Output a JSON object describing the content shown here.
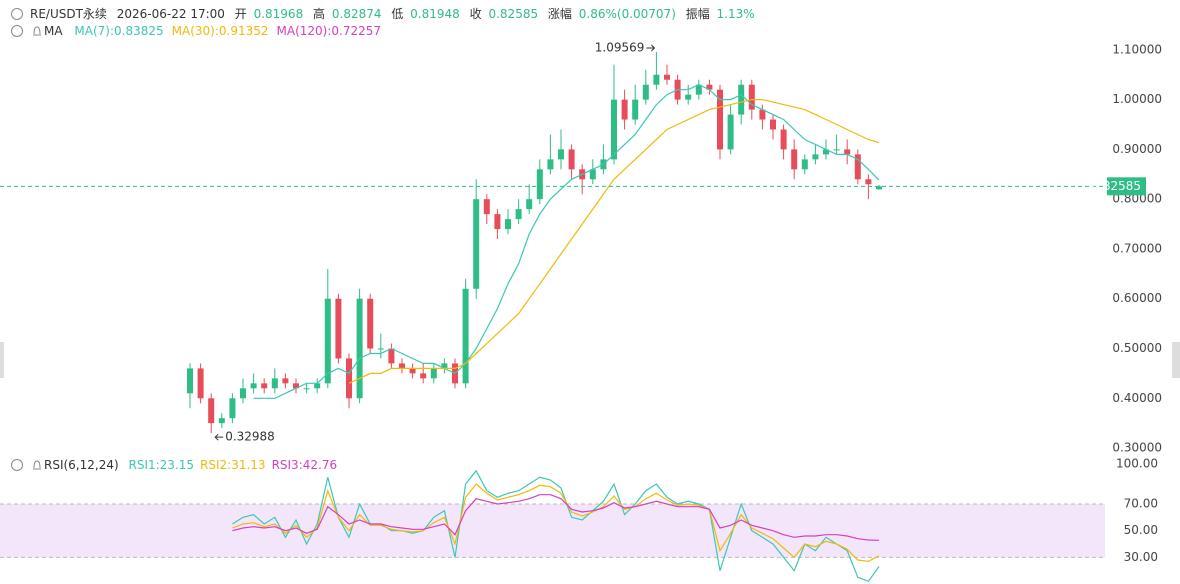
{
  "header": {
    "symbol": "RE/USDT永续",
    "time": "2026-06-22 17:00",
    "labels": [
      "开",
      "高",
      "低",
      "收",
      "涨幅",
      "振幅"
    ],
    "change": "0.86%(0.00707)",
    "amplitude": "1.13%"
  },
  "chart_data": [
    {
      "type": "candlestick",
      "legend_title": "MA",
      "up_color": "#2ebd85",
      "down_color": "#e84c5a",
      "ylim": [
        0.28,
        1.16
      ],
      "yticks": [
        {
          "value": 1.1,
          "label": "1.10000"
        },
        {
          "value": 1.0,
          "label": "1.00000"
        },
        {
          "value": 0.9,
          "label": "0.90000"
        },
        {
          "value": 0.8,
          "label": "0.80000"
        },
        {
          "value": 0.7,
          "label": "0.70000"
        },
        {
          "value": 0.6,
          "label": "0.60000"
        },
        {
          "value": 0.5,
          "label": "0.50000"
        },
        {
          "value": 0.4,
          "label": "0.40000"
        },
        {
          "value": 0.3,
          "label": "0.30000"
        }
      ],
      "open": [
        0.41,
        0.46,
        0.4,
        0.35,
        0.36,
        0.4,
        0.42,
        0.43,
        0.42,
        0.44,
        0.43,
        0.42,
        0.42,
        0.43,
        0.6,
        0.48,
        0.4,
        0.6,
        0.5,
        0.5,
        0.47,
        0.46,
        0.45,
        0.44,
        0.46,
        0.47,
        0.43,
        0.62,
        0.8,
        0.77,
        0.74,
        0.76,
        0.78,
        0.8,
        0.86,
        0.88,
        0.9,
        0.86,
        0.84,
        0.86,
        0.88,
        1.0,
        0.96,
        1.0,
        1.03,
        1.05,
        1.04,
        1.0,
        1.01,
        1.03,
        1.02,
        0.9,
        0.97,
        1.03,
        0.98,
        0.96,
        0.94,
        0.9,
        0.86,
        0.88,
        0.89,
        0.9,
        0.9,
        0.89,
        0.84,
        0.81968
      ],
      "high": [
        0.47,
        0.47,
        0.41,
        0.37,
        0.41,
        0.44,
        0.45,
        0.44,
        0.46,
        0.45,
        0.44,
        0.43,
        0.44,
        0.66,
        0.61,
        0.49,
        0.62,
        0.61,
        0.53,
        0.51,
        0.48,
        0.47,
        0.47,
        0.47,
        0.48,
        0.48,
        0.64,
        0.84,
        0.81,
        0.78,
        0.78,
        0.8,
        0.83,
        0.88,
        0.93,
        0.94,
        0.91,
        0.87,
        0.88,
        0.91,
        1.07,
        1.02,
        1.03,
        1.06,
        1.09569,
        1.07,
        1.05,
        1.03,
        1.04,
        1.04,
        1.03,
        0.99,
        1.04,
        1.04,
        0.99,
        0.97,
        0.95,
        0.92,
        0.89,
        0.91,
        0.92,
        0.93,
        0.92,
        0.9,
        0.85,
        0.82874
      ],
      "low": [
        0.38,
        0.39,
        0.32988,
        0.34,
        0.35,
        0.39,
        0.41,
        0.41,
        0.41,
        0.42,
        0.41,
        0.41,
        0.41,
        0.42,
        0.47,
        0.38,
        0.39,
        0.49,
        0.48,
        0.46,
        0.45,
        0.44,
        0.43,
        0.43,
        0.45,
        0.42,
        0.42,
        0.6,
        0.75,
        0.72,
        0.73,
        0.75,
        0.77,
        0.79,
        0.85,
        0.86,
        0.84,
        0.81,
        0.83,
        0.85,
        0.87,
        0.94,
        0.95,
        0.99,
        1.02,
        1.03,
        0.99,
        0.99,
        1.0,
        1.01,
        0.88,
        0.89,
        0.95,
        0.96,
        0.94,
        0.92,
        0.88,
        0.84,
        0.85,
        0.87,
        0.88,
        0.89,
        0.87,
        0.83,
        0.8,
        0.81948
      ],
      "close": [
        0.46,
        0.4,
        0.35,
        0.36,
        0.4,
        0.42,
        0.43,
        0.42,
        0.44,
        0.43,
        0.42,
        0.42,
        0.43,
        0.6,
        0.48,
        0.4,
        0.6,
        0.5,
        0.5,
        0.47,
        0.46,
        0.45,
        0.44,
        0.46,
        0.47,
        0.43,
        0.62,
        0.8,
        0.77,
        0.74,
        0.76,
        0.78,
        0.8,
        0.86,
        0.88,
        0.9,
        0.86,
        0.84,
        0.86,
        0.88,
        1.0,
        0.96,
        1.0,
        1.03,
        1.05,
        1.04,
        1.0,
        1.01,
        1.03,
        1.02,
        0.9,
        0.97,
        1.03,
        0.98,
        0.96,
        0.94,
        0.9,
        0.86,
        0.88,
        0.89,
        0.9,
        0.9,
        0.89,
        0.84,
        0.83,
        0.82585
      ],
      "series": [
        {
          "name": "MA(7):0.83825",
          "color": "#3cc7b5",
          "values": [
            null,
            null,
            null,
            null,
            null,
            null,
            0.4,
            0.4,
            0.4,
            0.41,
            0.42,
            0.43,
            0.43,
            0.45,
            0.46,
            0.45,
            0.48,
            0.49,
            0.49,
            0.5,
            0.49,
            0.48,
            0.47,
            0.47,
            0.46,
            0.45,
            0.47,
            0.5,
            0.54,
            0.58,
            0.63,
            0.67,
            0.73,
            0.77,
            0.8,
            0.82,
            0.84,
            0.85,
            0.86,
            0.87,
            0.89,
            0.91,
            0.93,
            0.96,
            0.99,
            1.01,
            1.02,
            1.02,
            1.03,
            1.02,
            1.0,
            1.0,
            1.01,
            0.99,
            0.98,
            0.97,
            0.96,
            0.94,
            0.92,
            0.91,
            0.9,
            0.89,
            0.89,
            0.88,
            0.86,
            0.83825
          ]
        },
        {
          "name": "MA(30):0.91352",
          "color": "#f0b90b",
          "values": [
            null,
            null,
            null,
            null,
            null,
            null,
            null,
            null,
            null,
            null,
            null,
            null,
            null,
            null,
            null,
            0.43,
            0.44,
            0.45,
            0.45,
            0.46,
            0.46,
            0.46,
            0.46,
            0.46,
            0.46,
            0.46,
            0.47,
            0.49,
            0.51,
            0.53,
            0.55,
            0.57,
            0.6,
            0.63,
            0.66,
            0.69,
            0.72,
            0.75,
            0.78,
            0.81,
            0.84,
            0.86,
            0.88,
            0.9,
            0.92,
            0.94,
            0.95,
            0.96,
            0.97,
            0.98,
            0.985,
            0.99,
            0.995,
            1.0,
            1.0,
            0.995,
            0.99,
            0.985,
            0.98,
            0.97,
            0.96,
            0.95,
            0.94,
            0.93,
            0.92,
            0.91352
          ]
        },
        {
          "name": "MA(120):0.72257",
          "color": "#d63fc0"
        }
      ]
    },
    {
      "type": "line",
      "title": "RSI(6,12,24)",
      "ylim": [
        10,
        100
      ],
      "yticks": [
        {
          "value": 100,
          "label": "100.00"
        },
        {
          "value": 70,
          "label": "70.00"
        },
        {
          "value": 50,
          "label": "50.00"
        },
        {
          "value": 30,
          "label": "30.00"
        }
      ],
      "band_color": "#f3e6fb",
      "series": [
        {
          "name": "RSI1:23.15",
          "color": "#3cc7b5",
          "values": [
            null,
            null,
            null,
            null,
            55,
            60,
            62,
            55,
            60,
            45,
            58,
            40,
            55,
            90,
            60,
            45,
            70,
            55,
            55,
            50,
            50,
            48,
            50,
            60,
            65,
            30,
            85,
            95,
            80,
            75,
            78,
            80,
            85,
            90,
            88,
            82,
            60,
            58,
            65,
            72,
            85,
            62,
            70,
            80,
            85,
            75,
            70,
            72,
            70,
            66,
            20,
            45,
            70,
            50,
            45,
            40,
            30,
            20,
            40,
            35,
            45,
            40,
            35,
            15,
            12,
            23.15
          ]
        },
        {
          "name": "RSI2:31.13",
          "color": "#f0b90b",
          "values": [
            null,
            null,
            null,
            null,
            52,
            55,
            56,
            53,
            55,
            48,
            54,
            45,
            52,
            80,
            60,
            50,
            62,
            54,
            54,
            51,
            50,
            49,
            50,
            56,
            60,
            40,
            75,
            85,
            78,
            73,
            75,
            77,
            80,
            84,
            83,
            78,
            64,
            61,
            64,
            68,
            76,
            66,
            68,
            74,
            78,
            73,
            69,
            70,
            69,
            66,
            35,
            48,
            62,
            52,
            48,
            44,
            37,
            30,
            40,
            38,
            42,
            40,
            36,
            28,
            27,
            31.13
          ]
        },
        {
          "name": "RSI3:42.76",
          "color": "#d63fc0",
          "values": [
            null,
            null,
            null,
            null,
            50,
            52,
            53,
            52,
            53,
            50,
            52,
            48,
            51,
            68,
            62,
            55,
            58,
            55,
            55,
            53,
            52,
            51,
            51,
            53,
            55,
            47,
            65,
            74,
            72,
            70,
            71,
            72,
            74,
            77,
            77,
            74,
            66,
            64,
            65,
            67,
            71,
            67,
            68,
            70,
            72,
            70,
            68,
            68,
            68,
            66,
            52,
            54,
            58,
            54,
            52,
            50,
            47,
            45,
            46,
            46,
            47,
            47,
            46,
            44,
            43,
            42.76
          ]
        }
      ]
    }
  ]
}
